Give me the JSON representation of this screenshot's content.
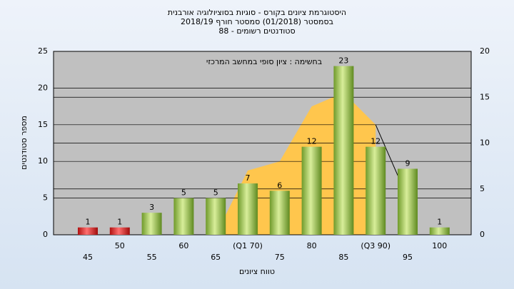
{
  "chart_data": {
    "type": "bar",
    "title": "היסטוגרמת ציונים בקורס - סוגיות בסוציולוגיה אורבנית",
    "subtitle": "בסמסטר  (01/2018)  סמסטר חורף 2018/19",
    "subtitle2": "סטודנטים רשומים - 88",
    "annotation": "בחשימה : ציון סופי במחשב המרכזי",
    "ylabel": "מספר סטודנטים",
    "xlabel": "טווח ציונים",
    "categories": [
      "45",
      "50",
      "55",
      "60",
      "65",
      "(Q1 70)",
      "75",
      "80",
      "85",
      "(Q3 90)",
      "95",
      "100"
    ],
    "values": [
      1,
      1,
      3,
      5,
      5,
      7,
      6,
      12,
      23,
      12,
      9,
      1
    ],
    "colors": [
      "#dd2222",
      "#dd2222",
      "#8fbc3f",
      "#8fbc3f",
      "#8fbc3f",
      "#8fbc3f",
      "#8fbc3f",
      "#8fbc3f",
      "#8fbc3f",
      "#8fbc3f",
      "#8fbc3f",
      "#8fbc3f"
    ],
    "ylim": [
      0,
      25
    ],
    "yticks": [
      0,
      5,
      10,
      15,
      20,
      25
    ],
    "y2lim": [
      0,
      20
    ],
    "y2ticks": [
      0,
      5,
      10,
      15,
      20
    ],
    "series": [
      {
        "type": "area",
        "axis": "y2",
        "color": "#ffc64d",
        "values": [
          null,
          null,
          null,
          null,
          0,
          7,
          8,
          14,
          15.5,
          12,
          null,
          null
        ]
      },
      {
        "type": "line",
        "axis": "y2",
        "color": "#000000",
        "values": [
          null,
          null,
          null,
          null,
          null,
          null,
          null,
          null,
          null,
          12,
          4,
          null
        ]
      }
    ],
    "grid": true
  }
}
